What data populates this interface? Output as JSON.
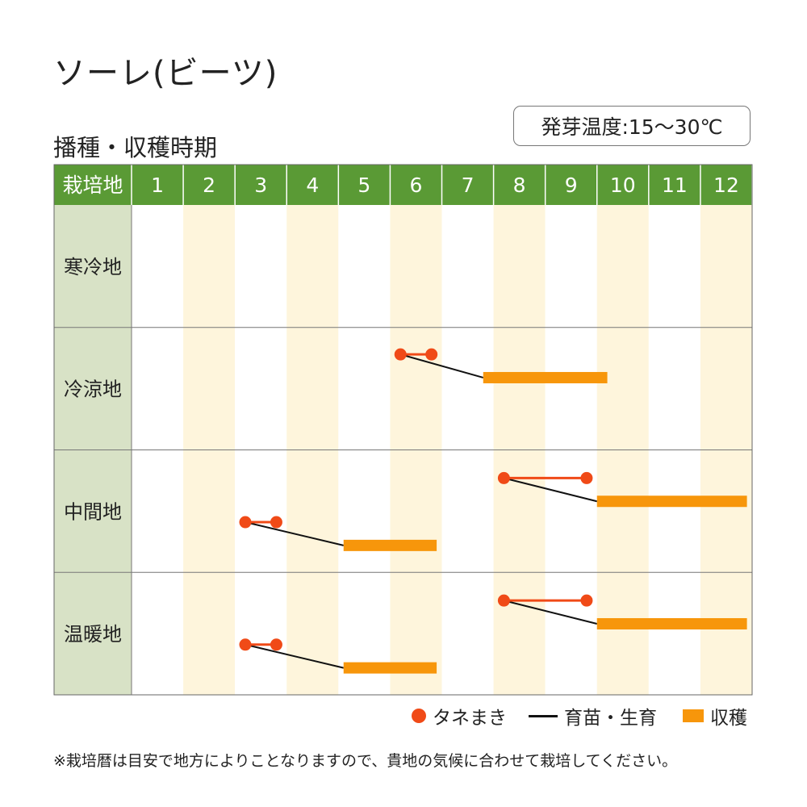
{
  "title": "ソーレ(ビーツ)",
  "subtitle": "播種・収穫時期",
  "temperature_badge": "発芽温度:15〜30℃",
  "colors": {
    "header_green": "#5a9a35",
    "region_label_bg": "#d8e2c6",
    "month_stripe": "#fef5dc",
    "sowing_red": "#f04a17",
    "harvest_orange": "#f7960b",
    "seedling_black": "#111111"
  },
  "chart_data": {
    "type": "table",
    "header_label": "栽培地",
    "months": [
      "1",
      "2",
      "3",
      "4",
      "5",
      "6",
      "7",
      "8",
      "9",
      "10",
      "11",
      "12"
    ],
    "rows": [
      {
        "region": "寒冷地",
        "schedules": []
      },
      {
        "region": "冷涼地",
        "schedules": [
          {
            "sowing": [
              6.2,
              6.8
            ],
            "harvest": [
              7.8,
              10.2
            ]
          }
        ]
      },
      {
        "region": "中間地",
        "schedules": [
          {
            "sowing": [
              8.2,
              9.8
            ],
            "harvest": [
              10.0,
              12.9
            ]
          },
          {
            "sowing": [
              3.2,
              3.8
            ],
            "harvest": [
              5.1,
              6.9
            ]
          }
        ]
      },
      {
        "region": "温暖地",
        "schedules": [
          {
            "sowing": [
              8.2,
              9.8
            ],
            "harvest": [
              10.0,
              12.9
            ]
          },
          {
            "sowing": [
              3.2,
              3.8
            ],
            "harvest": [
              5.1,
              6.9
            ]
          }
        ]
      }
    ]
  },
  "legend": {
    "sowing": "タネまき",
    "seedling": "育苗・生育",
    "harvest": "収穫"
  },
  "note": "※栽培暦は目安で地方によりことなりますので、貴地の気候に合わせて栽培してください。"
}
